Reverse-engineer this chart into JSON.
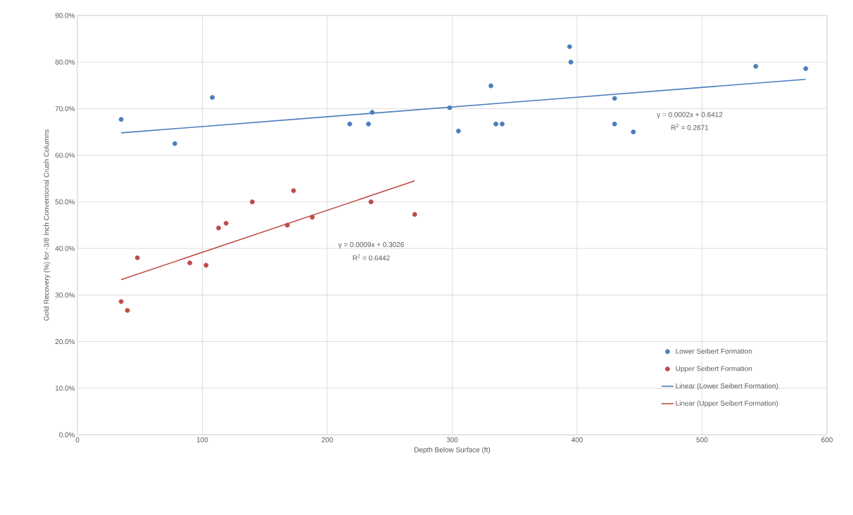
{
  "chart_data": {
    "type": "scatter",
    "xlabel": "Depth Below Surface (ft)",
    "ylabel": "Gold Recovery (%) for -3/8 Inch Conventional Crush Columns",
    "xlim": [
      0,
      600
    ],
    "xticks": [
      0,
      100,
      200,
      300,
      400,
      500,
      600
    ],
    "ylim": [
      0,
      0.9
    ],
    "yticks": [
      {
        "value": 0,
        "label": "0.0%"
      },
      {
        "value": 0.1,
        "label": "10.0%"
      },
      {
        "value": 0.2,
        "label": "20.0%"
      },
      {
        "value": 0.3,
        "label": "30.0%"
      },
      {
        "value": 0.4,
        "label": "40.0%"
      },
      {
        "value": 0.5,
        "label": "50.0%"
      },
      {
        "value": 0.6,
        "label": "60.0%"
      },
      {
        "value": 0.7,
        "label": "70.0%"
      },
      {
        "value": 0.8,
        "label": "80.0%"
      },
      {
        "value": 0.9,
        "label": "90.0%"
      }
    ],
    "grid": true,
    "legend": "bottom right",
    "series": [
      {
        "name": "Lower Seibert Formation",
        "marker": "circle",
        "color": "#4a7ebb",
        "x": [
          35,
          78,
          108,
          218,
          233,
          236,
          298,
          305,
          331,
          335,
          340,
          394,
          395,
          430,
          430,
          445,
          543,
          583
        ],
        "values": [
          0.677,
          0.625,
          0.724,
          0.667,
          0.667,
          0.692,
          0.702,
          0.652,
          0.749,
          0.667,
          0.667,
          0.833,
          0.8,
          0.722,
          0.667,
          0.65,
          0.791,
          0.786
        ]
      },
      {
        "name": "Upper Seibert Formation",
        "marker": "circle",
        "color": "#be4b48",
        "x": [
          35,
          40,
          48,
          90,
          103,
          113,
          119,
          140,
          168,
          173,
          188,
          235,
          270
        ],
        "values": [
          0.286,
          0.267,
          0.38,
          0.369,
          0.364,
          0.444,
          0.454,
          0.5,
          0.45,
          0.524,
          0.467,
          0.5,
          0.473
        ]
      },
      {
        "name": "Linear (Lower Seibert Formation)",
        "type": "line",
        "marker": "none",
        "color": "#4a7ebb",
        "x": [
          35,
          583
        ],
        "values": [
          0.648,
          0.763
        ]
      },
      {
        "name": "Linear (Upper Seibert Formation)",
        "type": "line",
        "marker": "none",
        "color": "#be4b48",
        "x": [
          35,
          270
        ],
        "values": [
          0.333,
          0.545
        ]
      }
    ],
    "annotations": [
      "y = 0.0002x + 0.6412",
      "R$^{2}$ = 0.2671",
      "y = 0.0009x + 0.3026",
      "R$^{2}$ = 0.6442"
    ]
  }
}
